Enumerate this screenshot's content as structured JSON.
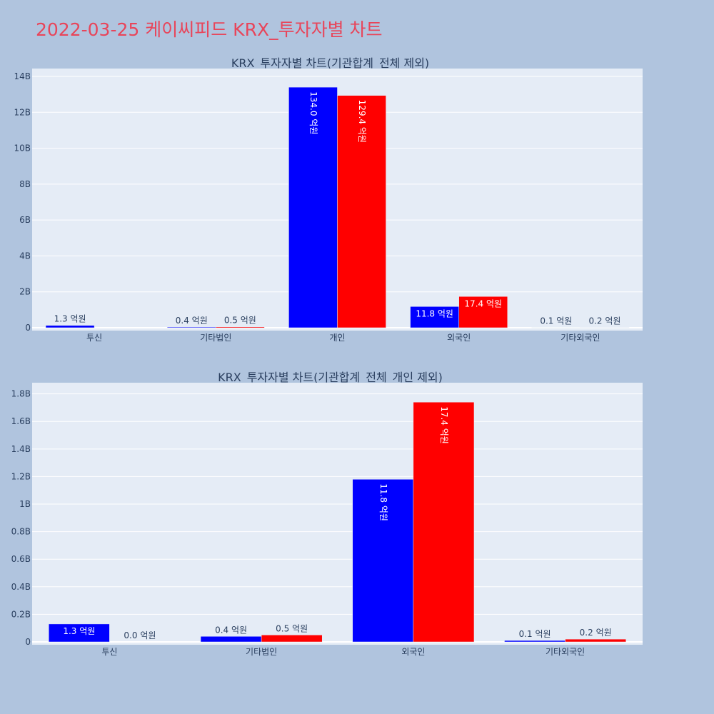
{
  "page": {
    "title": "2022-03-25 케이씨피드 KRX_투자자별 차트"
  },
  "colors": {
    "background": "#b0c4de",
    "plot_bg": "#e5ecf6",
    "series_a": "#0000ff",
    "series_b": "#ff0000",
    "title": "#e8455a"
  },
  "chart_data": [
    {
      "type": "bar",
      "title": "KRX_투자자별 차트(기관합계_전체 제외)",
      "categories": [
        "투신",
        "기타법인",
        "개인",
        "외국인",
        "기타외국인"
      ],
      "ylim": [
        0,
        14.2
      ],
      "yticks": [
        0,
        2,
        4,
        6,
        8,
        10,
        12,
        14
      ],
      "ytick_labels": [
        "0",
        "2B",
        "4B",
        "6B",
        "8B",
        "10B",
        "12B",
        "14B"
      ],
      "grid": true,
      "series": [
        {
          "color": "#0000ff",
          "values": [
            0.13,
            0.04,
            13.4,
            1.18,
            0.01
          ],
          "labels": [
            "1.3 억원",
            "0.4 억원",
            "134.0 억원",
            "11.8 억원",
            "0.1 억원"
          ]
        },
        {
          "color": "#ff0000",
          "values": [
            0.0,
            0.05,
            12.94,
            1.74,
            0.02
          ],
          "labels": [
            "",
            "0.5 억원",
            "129.4 억원",
            "17.4 억원",
            "0.2 억원"
          ]
        }
      ]
    },
    {
      "type": "bar",
      "title": "KRX_투자자별 차트(기관합계_전체_개인 제외)",
      "categories": [
        "투신",
        "기타법인",
        "외국인",
        "기타외국인"
      ],
      "ylim": [
        0,
        1.85
      ],
      "yticks": [
        0,
        0.2,
        0.4,
        0.6,
        0.8,
        1.0,
        1.2,
        1.4,
        1.6,
        1.8
      ],
      "ytick_labels": [
        "0",
        "0.2B",
        "0.4B",
        "0.6B",
        "0.8B",
        "1B",
        "1.2B",
        "1.4B",
        "1.6B",
        "1.8B"
      ],
      "grid": true,
      "series": [
        {
          "color": "#0000ff",
          "values": [
            0.13,
            0.04,
            1.18,
            0.01
          ],
          "labels": [
            "1.3 억원",
            "0.4 억원",
            "11.8 억원",
            "0.1 억원"
          ]
        },
        {
          "color": "#ff0000",
          "values": [
            0.0,
            0.05,
            1.74,
            0.02
          ],
          "labels": [
            "0.0 억원",
            "0.5 억원",
            "17.4 억원",
            "0.2 억원"
          ]
        }
      ]
    }
  ]
}
